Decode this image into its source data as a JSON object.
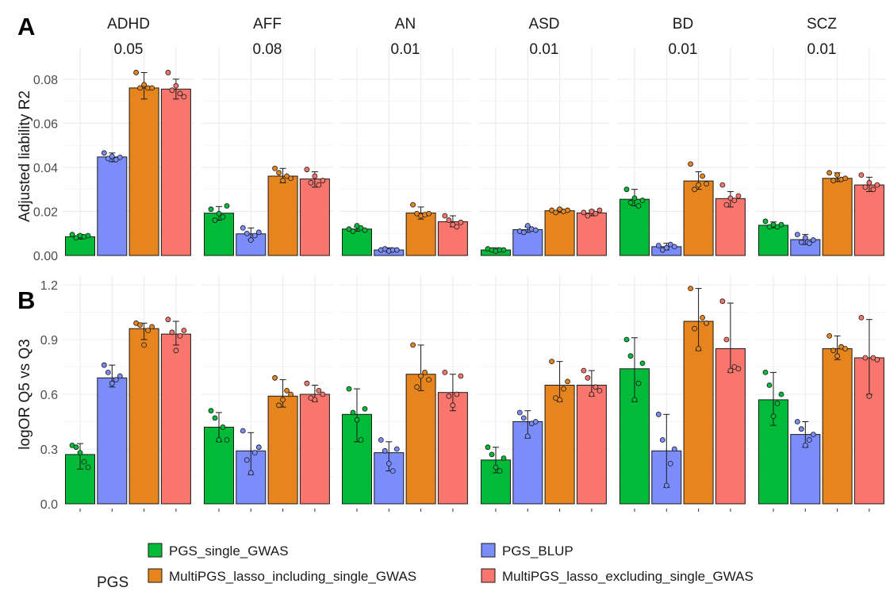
{
  "chart_data": [
    {
      "panel_label": "A",
      "type": "bar",
      "ylabel": "Adjusted liability R2",
      "ylim": [
        0,
        0.09
      ],
      "y_ticks": [
        "0.00",
        "0.02",
        "0.04",
        "0.06",
        "0.08"
      ],
      "y_tick_values": [
        0,
        0.02,
        0.04,
        0.06,
        0.08
      ],
      "grid": true,
      "facets": [
        {
          "name": "ADHD",
          "prevalence": "0.05"
        },
        {
          "name": "AFF",
          "prevalence": "0.08"
        },
        {
          "name": "AN",
          "prevalence": "0.01"
        },
        {
          "name": "ASD",
          "prevalence": "0.01"
        },
        {
          "name": "BD",
          "prevalence": "0.01"
        },
        {
          "name": "SCZ",
          "prevalence": "0.01"
        }
      ],
      "series": [
        {
          "name": "PGS_single_GWAS",
          "color": "#00ba38",
          "values": [
            0.0085,
            0.0192,
            0.012,
            0.0025,
            0.0255,
            0.0137
          ],
          "err_low": [
            0.0075,
            0.016,
            0.011,
            0.0015,
            0.0225,
            0.0125
          ],
          "err_high": [
            0.0095,
            0.0222,
            0.013,
            0.0035,
            0.03,
            0.0152
          ],
          "points": [
            [
              0.0095,
              0.008,
              0.009,
              0.0085,
              0.009
            ],
            [
              0.021,
              0.016,
              0.019,
              0.0175,
              0.0225
            ],
            [
              0.012,
              0.011,
              0.0135,
              0.0125,
              0.0115
            ],
            [
              0.003,
              0.0025,
              0.002,
              0.0025,
              0.0025
            ],
            [
              0.03,
              0.024,
              0.026,
              0.0225,
              0.025
            ],
            [
              0.0155,
              0.013,
              0.014,
              0.013,
              0.014
            ]
          ]
        },
        {
          "name": "PGS_BLUP",
          "color": "#7b8cfb",
          "values": [
            0.0447,
            0.0098,
            0.0025,
            0.0117,
            0.004,
            0.0072
          ],
          "err_low": [
            0.0425,
            0.007,
            0.0015,
            0.0105,
            0.0025,
            0.005
          ],
          "err_high": [
            0.0465,
            0.0125,
            0.0035,
            0.013,
            0.0055,
            0.0095
          ],
          "points": [
            [
              0.0465,
              0.044,
              0.045,
              0.0435,
              0.0445
            ],
            [
              0.0125,
              0.01,
              0.007,
              0.009,
              0.0105
            ],
            [
              0.0025,
              0.003,
              0.002,
              0.0025,
              0.0025
            ],
            [
              0.011,
              0.0105,
              0.0135,
              0.012,
              0.0115
            ],
            [
              0.0045,
              0.0025,
              0.0035,
              0.005,
              0.004
            ],
            [
              0.0095,
              0.006,
              0.008,
              0.0055,
              0.007
            ]
          ]
        },
        {
          "name": "MultiPGS_lasso_including_single_GWAS",
          "color": "#e6851e",
          "values": [
            0.076,
            0.036,
            0.0193,
            0.0203,
            0.0338,
            0.035
          ],
          "err_low": [
            0.071,
            0.033,
            0.0165,
            0.0195,
            0.03,
            0.0335
          ],
          "err_high": [
            0.083,
            0.0395,
            0.022,
            0.021,
            0.038,
            0.0375
          ],
          "points": [
            [
              0.083,
              0.076,
              0.0775,
              0.076,
              0.076
            ],
            [
              0.0395,
              0.0375,
              0.034,
              0.036,
              0.035
            ],
            [
              0.023,
              0.019,
              0.018,
              0.0185,
              0.019
            ],
            [
              0.0205,
              0.0195,
              0.021,
              0.02,
              0.0205
            ],
            [
              0.0415,
              0.03,
              0.032,
              0.036,
              0.0325
            ],
            [
              0.0375,
              0.034,
              0.0365,
              0.0345,
              0.035
            ]
          ]
        },
        {
          "name": "MultiPGS_lasso_excluding_single_GWAS",
          "color": "#f8766d",
          "values": [
            0.0755,
            0.0347,
            0.0153,
            0.0193,
            0.0258,
            0.032
          ],
          "err_low": [
            0.071,
            0.031,
            0.013,
            0.018,
            0.022,
            0.029
          ],
          "err_high": [
            0.08,
            0.038,
            0.018,
            0.0205,
            0.029,
            0.0355
          ],
          "points": [
            [
              0.083,
              0.075,
              0.077,
              0.0735,
              0.072
            ],
            [
              0.039,
              0.033,
              0.036,
              0.032,
              0.034
            ],
            [
              0.018,
              0.016,
              0.014,
              0.013,
              0.015
            ],
            [
              0.0195,
              0.018,
              0.02,
              0.019,
              0.0205
            ],
            [
              0.032,
              0.023,
              0.026,
              0.025,
              0.027
            ],
            [
              0.0365,
              0.031,
              0.033,
              0.03,
              0.032
            ]
          ]
        }
      ]
    },
    {
      "panel_label": "B",
      "type": "bar",
      "ylabel": "logOR Q5 vs Q3",
      "ylim": [
        0,
        1.2
      ],
      "y_ticks": [
        "0.0",
        "0.3",
        "0.6",
        "0.9",
        "1.2"
      ],
      "y_tick_values": [
        0,
        0.3,
        0.6,
        0.9,
        1.2
      ],
      "grid": true,
      "facets": [
        {
          "name": "ADHD"
        },
        {
          "name": "AFF"
        },
        {
          "name": "AN"
        },
        {
          "name": "ASD"
        },
        {
          "name": "BD"
        },
        {
          "name": "SCZ"
        }
      ],
      "series": [
        {
          "name": "PGS_single_GWAS",
          "color": "#00ba38",
          "values": [
            0.27,
            0.42,
            0.49,
            0.24,
            0.74,
            0.57
          ],
          "err_low": [
            0.19,
            0.34,
            0.34,
            0.17,
            0.56,
            0.43
          ],
          "err_high": [
            0.33,
            0.5,
            0.63,
            0.31,
            0.91,
            0.72
          ],
          "points": [
            [
              0.32,
              0.31,
              0.28,
              0.23,
              0.2
            ],
            [
              0.51,
              0.47,
              0.35,
              0.42,
              0.35
            ],
            [
              0.63,
              0.5,
              0.46,
              0.35,
              0.52
            ],
            [
              0.31,
              0.27,
              0.2,
              0.18,
              0.25
            ],
            [
              0.9,
              0.81,
              0.57,
              0.66,
              0.77
            ],
            [
              0.72,
              0.65,
              0.48,
              0.55,
              0.6
            ]
          ]
        },
        {
          "name": "PGS_BLUP",
          "color": "#7b8cfb",
          "values": [
            0.69,
            0.29,
            0.28,
            0.45,
            0.29,
            0.38
          ],
          "err_low": [
            0.64,
            0.16,
            0.18,
            0.36,
            0.09,
            0.31
          ],
          "err_high": [
            0.76,
            0.39,
            0.34,
            0.51,
            0.49,
            0.45
          ],
          "points": [
            [
              0.76,
              0.72,
              0.66,
              0.68,
              0.7
            ],
            [
              0.4,
              0.24,
              0.17,
              0.28,
              0.31
            ],
            [
              0.35,
              0.29,
              0.22,
              0.18,
              0.3
            ],
            [
              0.5,
              0.47,
              0.37,
              0.44,
              0.45
            ],
            [
              0.49,
              0.35,
              0.1,
              0.22,
              0.3
            ],
            [
              0.45,
              0.41,
              0.32,
              0.35,
              0.38
            ]
          ]
        },
        {
          "name": "MultiPGS_lasso_including_single_GWAS",
          "color": "#e6851e",
          "values": [
            0.96,
            0.59,
            0.71,
            0.65,
            1.0,
            0.85
          ],
          "err_low": [
            0.9,
            0.53,
            0.62,
            0.56,
            0.84,
            0.79
          ],
          "err_high": [
            0.99,
            0.68,
            0.87,
            0.78,
            1.18,
            0.92
          ],
          "points": [
            [
              0.99,
              0.98,
              0.87,
              0.95,
              0.97
            ],
            [
              0.69,
              0.54,
              0.57,
              0.62,
              0.6
            ],
            [
              0.87,
              0.64,
              0.7,
              0.72,
              0.68
            ],
            [
              0.78,
              0.58,
              0.57,
              0.63,
              0.67
            ],
            [
              1.18,
              0.96,
              0.85,
              1.02,
              0.99
            ],
            [
              0.92,
              0.84,
              0.81,
              0.86,
              0.85
            ]
          ]
        },
        {
          "name": "MultiPGS_lasso_excluding_single_GWAS",
          "color": "#f8766d",
          "values": [
            0.93,
            0.6,
            0.61,
            0.65,
            0.85,
            0.8
          ],
          "err_low": [
            0.87,
            0.56,
            0.51,
            0.59,
            0.72,
            0.6
          ],
          "err_high": [
            1.0,
            0.65,
            0.71,
            0.73,
            1.1,
            1.01
          ],
          "points": [
            [
              1.01,
              0.94,
              0.84,
              0.92,
              0.95
            ],
            [
              0.66,
              0.58,
              0.57,
              0.62,
              0.6
            ],
            [
              0.72,
              0.59,
              0.54,
              0.6,
              0.7
            ],
            [
              0.73,
              0.69,
              0.6,
              0.64,
              0.62
            ],
            [
              1.11,
              0.9,
              0.73,
              0.75,
              0.74
            ],
            [
              1.02,
              0.8,
              0.59,
              0.8,
              0.79
            ]
          ]
        }
      ]
    }
  ],
  "legend": {
    "title": "PGS",
    "placement": "bottom",
    "items": [
      {
        "name": "PGS_single_GWAS",
        "color": "#00ba38"
      },
      {
        "name": "PGS_BLUP",
        "color": "#7b8cfb"
      },
      {
        "name": "MultiPGS_lasso_including_single_GWAS",
        "color": "#e6851e"
      },
      {
        "name": "MultiPGS_lasso_excluding_single_GWAS",
        "color": "#f8766d"
      }
    ]
  },
  "colors": {
    "grid": "#ebebeb",
    "text": "#1a1a1a",
    "axis_text": "#4d4d4d",
    "bar_outline": "#1a1a1a"
  }
}
